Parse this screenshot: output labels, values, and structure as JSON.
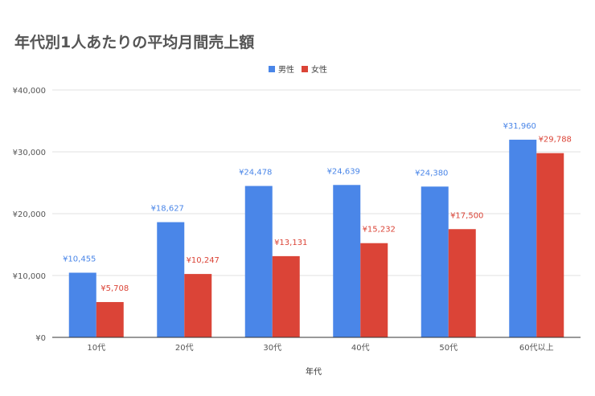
{
  "chart_data": {
    "type": "bar",
    "title": "年代別1人あたりの平均月間売上額",
    "xlabel": "年代",
    "ylabel": "",
    "categories": [
      "10代",
      "20代",
      "30代",
      "40代",
      "50代",
      "60代以上"
    ],
    "series": [
      {
        "name": "男性",
        "color": "#4a86e8",
        "values": [
          10455,
          18627,
          24478,
          24639,
          24380,
          31960
        ],
        "labels": [
          "¥10,455",
          "¥18,627",
          "¥24,478",
          "¥24,639",
          "¥24,380",
          "¥31,960"
        ]
      },
      {
        "name": "女性",
        "color": "#db4437",
        "values": [
          5708,
          10247,
          13131,
          15232,
          17500,
          29788
        ],
        "labels": [
          "¥5,708",
          "¥10,247",
          "¥13,131",
          "¥15,232",
          "¥17,500",
          "¥29,788"
        ]
      }
    ],
    "ylim": [
      0,
      40000
    ],
    "yticks": [
      0,
      10000,
      20000,
      30000,
      40000
    ],
    "ytick_labels": [
      "¥0",
      "¥10,000",
      "¥20,000",
      "¥30,000",
      "¥40,000"
    ],
    "grid": true,
    "legend_position": "top-center",
    "colors": {
      "gridline": "#e0e0e0",
      "axis": "#333333"
    }
  }
}
